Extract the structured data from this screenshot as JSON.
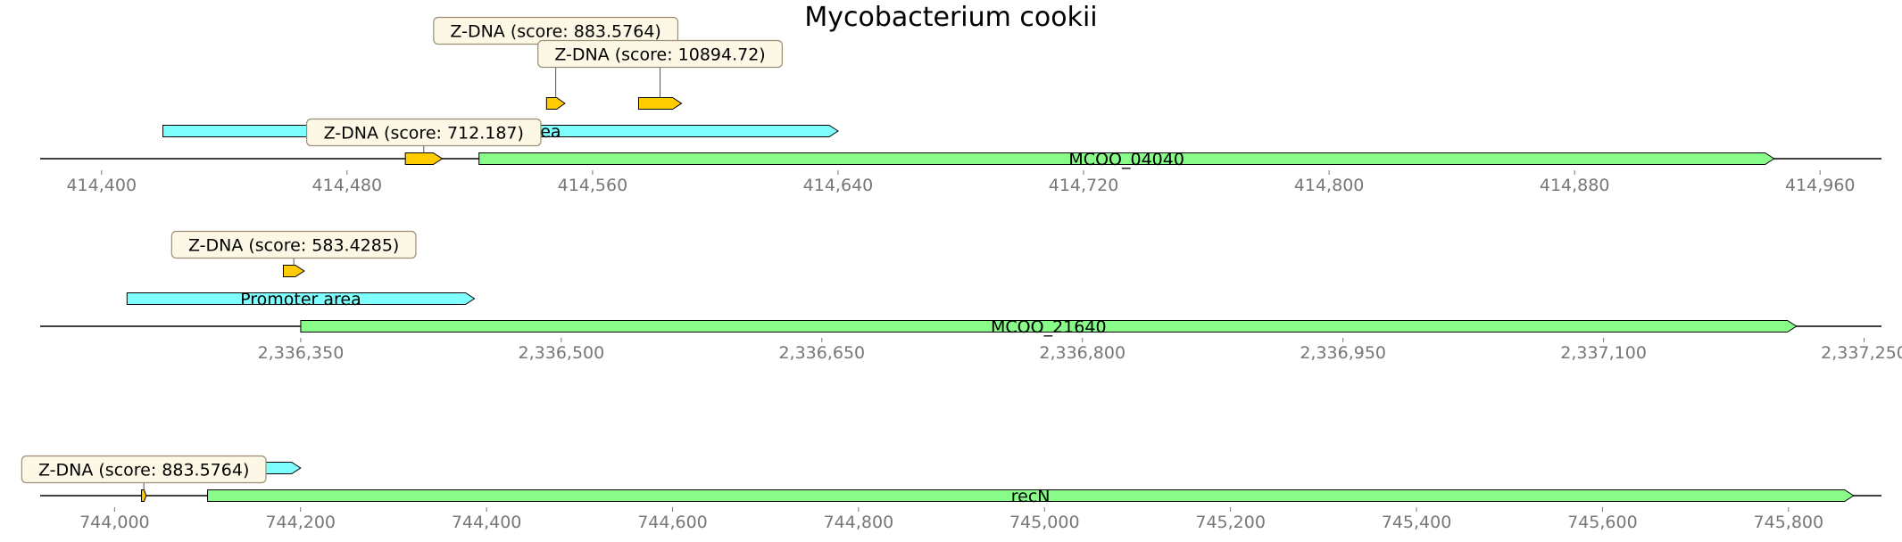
{
  "title": "Mycobacterium cookii",
  "colors": {
    "gene": "#88fb88",
    "promoter": "#80ffff",
    "zdna": "#ffcc00",
    "callout_fill": "#fdf8e6",
    "callout_border": "#9a8f73",
    "axis": "#000000",
    "tick_label": "#777777"
  },
  "tracks": [
    {
      "range": [
        414380,
        414980
      ],
      "ticks": [
        {
          "value": 414400,
          "label": "414,400"
        },
        {
          "value": 414480,
          "label": "414,480"
        },
        {
          "value": 414560,
          "label": "414,560"
        },
        {
          "value": 414640,
          "label": "414,640"
        },
        {
          "value": 414720,
          "label": "414,720"
        },
        {
          "value": 414800,
          "label": "414,800"
        },
        {
          "value": 414880,
          "label": "414,880"
        },
        {
          "value": 414960,
          "label": "414,960"
        }
      ],
      "features": [
        {
          "kind": "gene",
          "label": "MCOO_04040",
          "start": 414523,
          "end": 414945,
          "level": 0
        },
        {
          "kind": "zdna",
          "label": "",
          "start": 414499,
          "end": 414511,
          "level": 0
        },
        {
          "kind": "promoter",
          "label": "Promoter area",
          "start": 414420,
          "end": 414640,
          "level": 1
        },
        {
          "kind": "zdna",
          "label": "",
          "start": 414545,
          "end": 414551,
          "level": 2
        },
        {
          "kind": "zdna",
          "label": "",
          "start": 414575,
          "end": 414589,
          "level": 2
        }
      ],
      "callouts": [
        {
          "text": "Z-DNA (score: 712.187)",
          "feature_index": 1,
          "tier": 0
        },
        {
          "text": "Z-DNA (score: 883.5764)",
          "feature_index": 3,
          "tier": 2
        },
        {
          "text": "Z-DNA (score: 10894.72)",
          "feature_index": 4,
          "tier": 1
        }
      ]
    },
    {
      "range": [
        2336200,
        2337260
      ],
      "ticks": [
        {
          "value": 2336350,
          "label": "2,336,350"
        },
        {
          "value": 2336500,
          "label": "2,336,500"
        },
        {
          "value": 2336650,
          "label": "2,336,650"
        },
        {
          "value": 2336800,
          "label": "2,336,800"
        },
        {
          "value": 2336950,
          "label": "2,336,950"
        },
        {
          "value": 2337100,
          "label": "2,337,100"
        },
        {
          "value": 2337250,
          "label": "2,337,250"
        }
      ],
      "features": [
        {
          "kind": "gene",
          "label": "MCOO_21640",
          "start": 2336350,
          "end": 2337211,
          "level": 0
        },
        {
          "kind": "promoter",
          "label": "Promoter area",
          "start": 2336250,
          "end": 2336450,
          "level": 1
        },
        {
          "kind": "zdna",
          "label": "",
          "start": 2336340,
          "end": 2336352,
          "level": 2
        }
      ],
      "callouts": [
        {
          "text": "Z-DNA (score: 583.4285)",
          "feature_index": 2,
          "tier": 0
        }
      ]
    },
    {
      "range": [
        743920,
        745900
      ],
      "ticks": [
        {
          "value": 744000,
          "label": "744,000"
        },
        {
          "value": 744200,
          "label": "744,200"
        },
        {
          "value": 744400,
          "label": "744,400"
        },
        {
          "value": 744600,
          "label": "744,600"
        },
        {
          "value": 744800,
          "label": "744,800"
        },
        {
          "value": 745000,
          "label": "745,000"
        },
        {
          "value": 745200,
          "label": "745,200"
        },
        {
          "value": 745400,
          "label": "745,400"
        },
        {
          "value": 745600,
          "label": "745,600"
        },
        {
          "value": 745800,
          "label": "745,800"
        }
      ],
      "features": [
        {
          "kind": "gene",
          "label": "recN",
          "start": 744100,
          "end": 745870,
          "level": 0
        },
        {
          "kind": "zdna",
          "label": "",
          "start": 744029,
          "end": 744034,
          "level": 0
        },
        {
          "kind": "promoter",
          "label": "Promoter area",
          "start": 743970,
          "end": 744200,
          "level": 1
        }
      ],
      "callouts": [
        {
          "text": "Z-DNA (score: 883.5764)",
          "feature_index": 1,
          "tier": 0
        }
      ]
    }
  ]
}
